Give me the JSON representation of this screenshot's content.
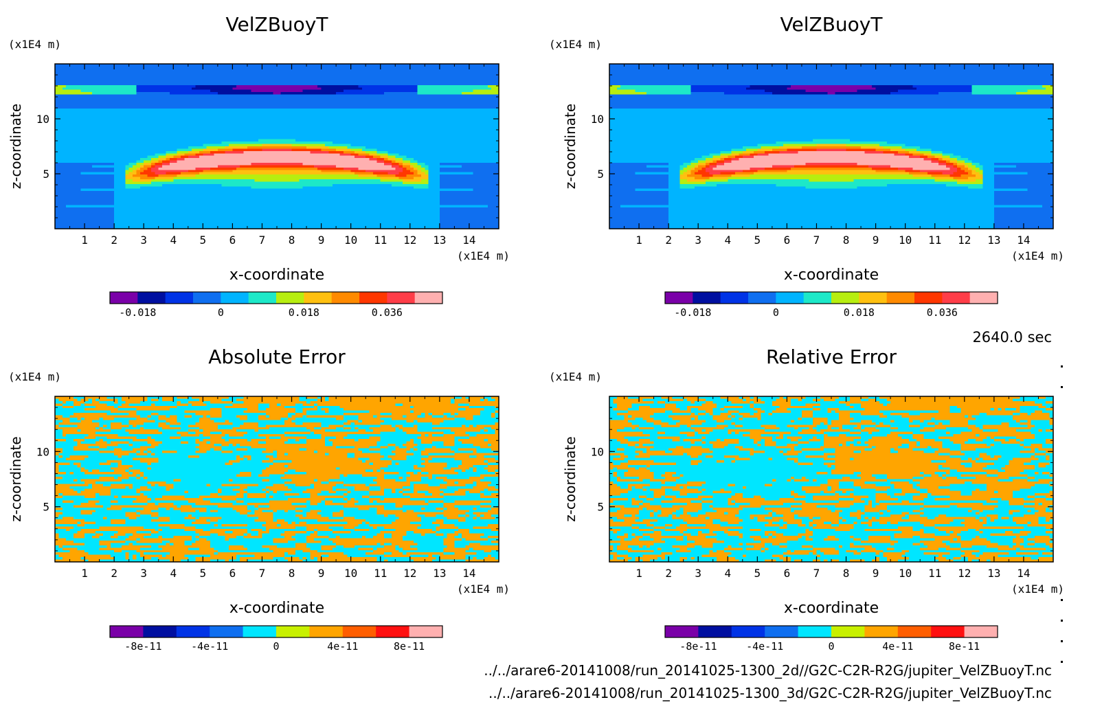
{
  "palette": {
    "velz": [
      "#7a00a8",
      "#000fa0",
      "#0033e6",
      "#0f6ff0",
      "#00b4ff",
      "#1de8c8",
      "#b7ee10",
      "#ffc010",
      "#ff8a00",
      "#ff3700",
      "#ff3d48",
      "#ffb0b0"
    ],
    "error": [
      "#7a00a8",
      "#000fa0",
      "#0033e6",
      "#0f6ff0",
      "#00e6ff",
      "#c8f000",
      "#ffa500",
      "#ff5e00",
      "#ff1010",
      "#ffb0b0"
    ]
  },
  "time_label": "2640.0 sec",
  "files": [
    "../../arare6-20141008/run_20141025-1300_2d//G2C-C2R-R2G/jupiter_VelZBuoyT.nc",
    "../../arare6-20141008/run_20141025-1300_3d/G2C-C2R-R2G/jupiter_VelZBuoyT.nc"
  ],
  "chart_data": [
    {
      "type": "heatmap",
      "title": "VelZBuoyT",
      "xlabel": "x-coordinate",
      "ylabel": "z-coordinate",
      "x_unit": "(x1E4 m)",
      "y_unit": "(x1E4 m)",
      "xlim": [
        0,
        15
      ],
      "ylim": [
        0,
        15
      ],
      "xticks": [
        1,
        2,
        3,
        4,
        5,
        6,
        7,
        8,
        9,
        10,
        11,
        12,
        13,
        14
      ],
      "yticks": [
        5,
        10
      ],
      "colorbar": {
        "palette": "velz",
        "min": -0.024,
        "max": 0.048,
        "ticks": [
          "-0.018",
          "0",
          "0.018",
          "0.036"
        ]
      },
      "pattern": "buoyant-thermal"
    },
    {
      "type": "heatmap",
      "title": "VelZBuoyT",
      "xlabel": "x-coordinate",
      "ylabel": "z-coordinate",
      "x_unit": "(x1E4 m)",
      "y_unit": "(x1E4 m)",
      "xlim": [
        0,
        15
      ],
      "ylim": [
        0,
        15
      ],
      "xticks": [
        1,
        2,
        3,
        4,
        5,
        6,
        7,
        8,
        9,
        10,
        11,
        12,
        13,
        14
      ],
      "yticks": [
        5,
        10
      ],
      "colorbar": {
        "palette": "velz",
        "min": -0.024,
        "max": 0.048,
        "ticks": [
          "-0.018",
          "0",
          "0.018",
          "0.036"
        ]
      },
      "pattern": "buoyant-thermal"
    },
    {
      "type": "heatmap",
      "title": "Absolute Error",
      "xlabel": "x-coordinate",
      "ylabel": "z-coordinate",
      "x_unit": "(x1E4 m)",
      "y_unit": "(x1E4 m)",
      "xlim": [
        0,
        15
      ],
      "ylim": [
        0,
        15
      ],
      "xticks": [
        1,
        2,
        3,
        4,
        5,
        6,
        7,
        8,
        9,
        10,
        11,
        12,
        13,
        14
      ],
      "yticks": [
        5,
        10
      ],
      "colorbar": {
        "palette": "error",
        "min": -1e-10,
        "max": 1e-10,
        "ticks": [
          "-8e-11",
          "-4e-11",
          "0",
          "4e-11",
          "8e-11"
        ]
      },
      "pattern": "noise",
      "seed": 3
    },
    {
      "type": "heatmap",
      "title": "Relative Error",
      "xlabel": "x-coordinate",
      "ylabel": "z-coordinate",
      "x_unit": "(x1E4 m)",
      "y_unit": "(x1E4 m)",
      "xlim": [
        0,
        15
      ],
      "ylim": [
        0,
        15
      ],
      "xticks": [
        1,
        2,
        3,
        4,
        5,
        6,
        7,
        8,
        9,
        10,
        11,
        12,
        13,
        14
      ],
      "yticks": [
        5,
        10
      ],
      "colorbar": {
        "palette": "error",
        "min": -1e-10,
        "max": 1e-10,
        "ticks": [
          "-8e-11",
          "-4e-11",
          "0",
          "4e-11",
          "8e-11"
        ]
      },
      "pattern": "noise",
      "seed": 7
    }
  ]
}
